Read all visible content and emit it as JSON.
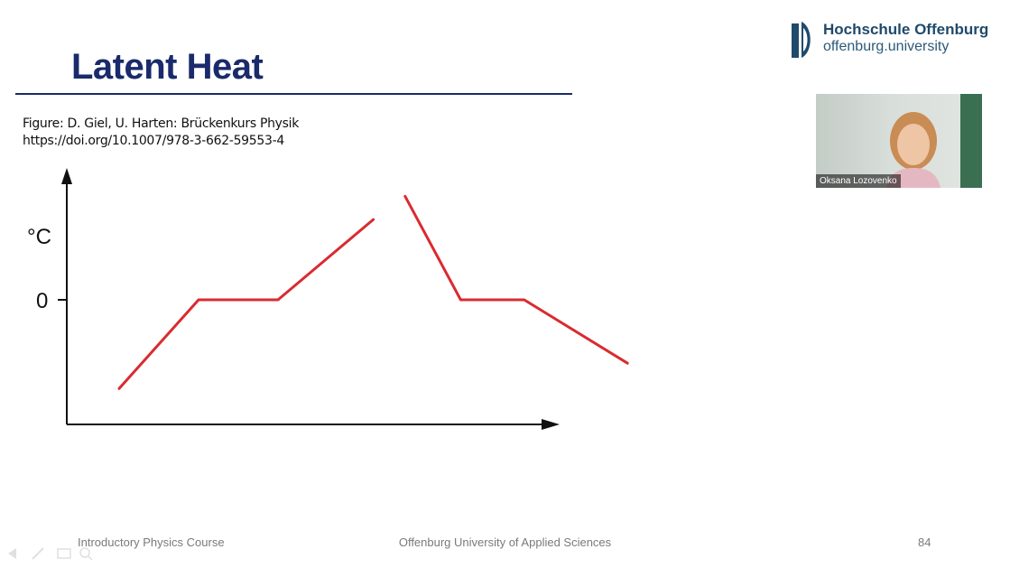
{
  "slide": {
    "title": "Latent Heat",
    "caption_line1": "Figure: D. Giel, U. Harten: Brückenkurs Physik",
    "caption_line2": "https://doi.org/10.1007/978-3-662-59553-4",
    "colors": {
      "title": "#1a2a6b",
      "curve": "#d92b30",
      "axis": "#111111"
    }
  },
  "logo": {
    "name": "Hochschule Offenburg",
    "sub": "offenburg.university"
  },
  "video": {
    "participant_name": "Oksana Lozovenko",
    "icon": "person-icon"
  },
  "footer": {
    "left": "Introductory Physics Course",
    "center": "Offenburg University of Applied Sciences",
    "page": "84"
  },
  "chart_data": {
    "type": "line",
    "ylabel": "°C",
    "ytick_labels": [
      "0"
    ],
    "xlabel": "",
    "grid": false,
    "series": [
      {
        "x": [
          0.0,
          1.0,
          2.0,
          3.2
        ],
        "y": [
          -8.4,
          0,
          0,
          7.6
        ]
      },
      {
        "x": [
          3.6,
          4.3,
          5.1,
          6.4
        ],
        "y": [
          9.8,
          0,
          0,
          -6.0
        ]
      }
    ]
  }
}
